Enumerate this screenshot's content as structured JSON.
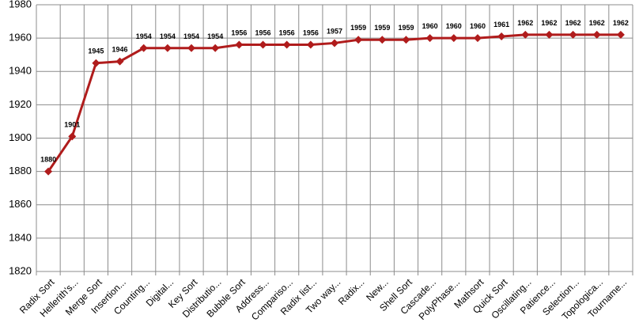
{
  "chart_data": {
    "type": "line",
    "categories": [
      "Radix Sort",
      "Hellerith's...",
      "Merge Sort",
      "Insertion...",
      "Counting...",
      "Digital...",
      "Key Sort",
      "Distributio...",
      "Bubble Sort",
      "Address...",
      "Compariso...",
      "Radix list...",
      "Two way...",
      "Radix...",
      "New...",
      "Shell Sort",
      "Cascade...",
      "PolyPhase...",
      "Mathsort",
      "Quick Sort",
      "Oscillating...",
      "Patience...",
      "Selection...",
      "Topologica...",
      "Tourname..."
    ],
    "values": [
      1880,
      1901,
      1945,
      1946,
      1954,
      1954,
      1954,
      1954,
      1956,
      1956,
      1956,
      1956,
      1957,
      1959,
      1959,
      1959,
      1960,
      1960,
      1960,
      1961,
      1962,
      1962,
      1962,
      1962,
      1962
    ],
    "color": "#b01c1c",
    "ylim": [
      1820,
      1980
    ],
    "yticks": [
      1820,
      1840,
      1860,
      1880,
      1900,
      1920,
      1940,
      1960,
      1980
    ],
    "grid": true
  }
}
